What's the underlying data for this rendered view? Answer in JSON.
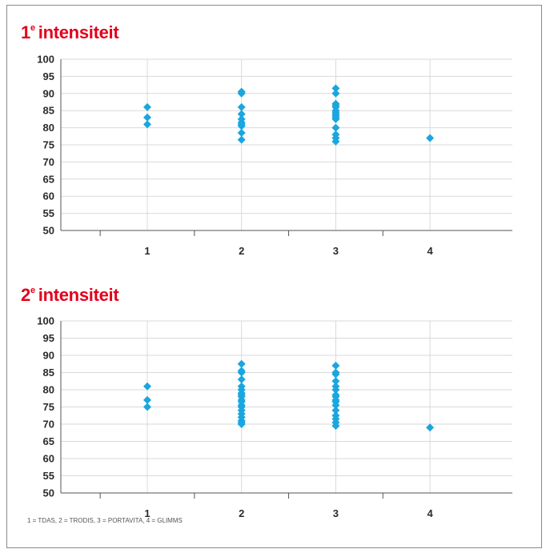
{
  "colors": {
    "title": "#e3001b",
    "marker": "#1aa6de",
    "grid": "#d9d9d9",
    "axis": "#555555"
  },
  "footnote": "1 = TDAS, 2 = TRODIS, 3 = PORTAVITA, 4 = GLIMMS",
  "chart_data": [
    {
      "type": "scatter",
      "title_main": "1",
      "title_sup": "e",
      "title_rest": "intensiteit",
      "ylim": [
        50,
        100
      ],
      "yticks": [
        100,
        95,
        90,
        85,
        80,
        75,
        70,
        65,
        60,
        55,
        50
      ],
      "xlim": [
        0,
        5
      ],
      "xticks": [
        1,
        2,
        3,
        4
      ],
      "grid": true,
      "marker": "diamond",
      "points": [
        {
          "x": 1,
          "y": 86
        },
        {
          "x": 1,
          "y": 83
        },
        {
          "x": 1,
          "y": 81
        },
        {
          "x": 2,
          "y": 90.5
        },
        {
          "x": 2,
          "y": 90
        },
        {
          "x": 2,
          "y": 86
        },
        {
          "x": 2,
          "y": 84
        },
        {
          "x": 2,
          "y": 82.5
        },
        {
          "x": 2,
          "y": 81.5
        },
        {
          "x": 2,
          "y": 81
        },
        {
          "x": 2,
          "y": 80.5
        },
        {
          "x": 2,
          "y": 78.5
        },
        {
          "x": 2,
          "y": 76.5
        },
        {
          "x": 3,
          "y": 91.5
        },
        {
          "x": 3,
          "y": 90
        },
        {
          "x": 3,
          "y": 87
        },
        {
          "x": 3,
          "y": 86.5
        },
        {
          "x": 3,
          "y": 86
        },
        {
          "x": 3,
          "y": 85
        },
        {
          "x": 3,
          "y": 84.5
        },
        {
          "x": 3,
          "y": 84
        },
        {
          "x": 3,
          "y": 83.5
        },
        {
          "x": 3,
          "y": 83
        },
        {
          "x": 3,
          "y": 82.5
        },
        {
          "x": 3,
          "y": 80
        },
        {
          "x": 3,
          "y": 78
        },
        {
          "x": 3,
          "y": 77
        },
        {
          "x": 3,
          "y": 76
        },
        {
          "x": 4,
          "y": 77
        }
      ]
    },
    {
      "type": "scatter",
      "title_main": "2",
      "title_sup": "e",
      "title_rest": "intensiteit",
      "ylim": [
        50,
        100
      ],
      "yticks": [
        100,
        95,
        90,
        85,
        80,
        75,
        70,
        65,
        60,
        55,
        50
      ],
      "xlim": [
        0,
        5
      ],
      "xticks": [
        1,
        2,
        3,
        4
      ],
      "grid": true,
      "marker": "diamond",
      "points": [
        {
          "x": 1,
          "y": 81
        },
        {
          "x": 1,
          "y": 77
        },
        {
          "x": 1,
          "y": 75
        },
        {
          "x": 2,
          "y": 87.5
        },
        {
          "x": 2,
          "y": 85.5
        },
        {
          "x": 2,
          "y": 85
        },
        {
          "x": 2,
          "y": 83
        },
        {
          "x": 2,
          "y": 81
        },
        {
          "x": 2,
          "y": 80
        },
        {
          "x": 2,
          "y": 79
        },
        {
          "x": 2,
          "y": 78.5
        },
        {
          "x": 2,
          "y": 78
        },
        {
          "x": 2,
          "y": 77
        },
        {
          "x": 2,
          "y": 76.5
        },
        {
          "x": 2,
          "y": 75.5
        },
        {
          "x": 2,
          "y": 75
        },
        {
          "x": 2,
          "y": 74
        },
        {
          "x": 2,
          "y": 73
        },
        {
          "x": 2,
          "y": 72
        },
        {
          "x": 2,
          "y": 71
        },
        {
          "x": 2,
          "y": 70.5
        },
        {
          "x": 2,
          "y": 70
        },
        {
          "x": 3,
          "y": 87
        },
        {
          "x": 3,
          "y": 85
        },
        {
          "x": 3,
          "y": 84.5
        },
        {
          "x": 3,
          "y": 82.5
        },
        {
          "x": 3,
          "y": 81
        },
        {
          "x": 3,
          "y": 80
        },
        {
          "x": 3,
          "y": 78.5
        },
        {
          "x": 3,
          "y": 78
        },
        {
          "x": 3,
          "y": 77
        },
        {
          "x": 3,
          "y": 76.5
        },
        {
          "x": 3,
          "y": 75.5
        },
        {
          "x": 3,
          "y": 74
        },
        {
          "x": 3,
          "y": 72.5
        },
        {
          "x": 3,
          "y": 71.5
        },
        {
          "x": 3,
          "y": 70.5
        },
        {
          "x": 3,
          "y": 69.5
        },
        {
          "x": 4,
          "y": 69
        }
      ]
    }
  ]
}
